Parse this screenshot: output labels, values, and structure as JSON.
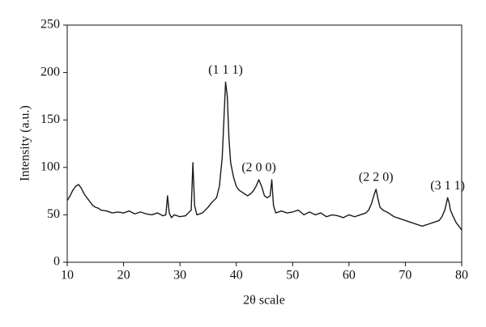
{
  "chart_data": {
    "type": "line",
    "x_label": "2θ scale",
    "y_label": "Intensity (a.u.)",
    "xlim": [
      10,
      80
    ],
    "ylim": [
      0,
      250
    ],
    "xticks": [
      10,
      20,
      30,
      40,
      50,
      60,
      70,
      80
    ],
    "yticks": [
      0,
      50,
      100,
      150,
      200,
      250
    ],
    "color": "#1a1a1a",
    "x": [
      10,
      10.5,
      11,
      11.5,
      12,
      12.5,
      13,
      13.5,
      14,
      14.5,
      15,
      15.5,
      16,
      17,
      18,
      19,
      20,
      21,
      22,
      23,
      24,
      25,
      26,
      27,
      27.5,
      27.8,
      28.1,
      28.5,
      29,
      30,
      31,
      31.5,
      32,
      32.3,
      32.6,
      33,
      34,
      35,
      35.5,
      36,
      36.5,
      37,
      37.5,
      37.8,
      38.1,
      38.4,
      38.7,
      39,
      39.5,
      40,
      40.5,
      41,
      41.5,
      42,
      42.5,
      43,
      43.5,
      44,
      44.5,
      45,
      45.5,
      46,
      46.3,
      46.6,
      47,
      48,
      49,
      50,
      51,
      52,
      53,
      54,
      55,
      56,
      57,
      58,
      59,
      60,
      61,
      62,
      63,
      63.5,
      64,
      64.5,
      64.8,
      65.1,
      65.5,
      66,
      67,
      68,
      69,
      70,
      71,
      72,
      73,
      74,
      75,
      76,
      76.5,
      77,
      77.5,
      77.8,
      78,
      78.5,
      79,
      79.5,
      80
    ],
    "values": [
      65,
      70,
      76,
      80,
      82,
      78,
      72,
      68,
      64,
      60,
      58,
      57,
      55,
      54,
      52,
      53,
      52,
      54,
      51,
      53,
      51,
      50,
      52,
      49,
      50,
      70,
      52,
      47,
      50,
      48,
      49,
      52,
      55,
      105,
      60,
      50,
      52,
      58,
      62,
      65,
      68,
      80,
      110,
      150,
      190,
      175,
      130,
      105,
      90,
      80,
      76,
      74,
      72,
      70,
      72,
      75,
      80,
      87,
      80,
      70,
      68,
      70,
      87,
      60,
      52,
      54,
      52,
      53,
      55,
      50,
      53,
      50,
      52,
      48,
      50,
      49,
      47,
      50,
      48,
      50,
      52,
      55,
      62,
      72,
      77,
      68,
      58,
      55,
      52,
      48,
      46,
      44,
      42,
      40,
      38,
      40,
      42,
      44,
      48,
      55,
      68,
      62,
      55,
      48,
      42,
      38,
      34
    ],
    "annotations": [
      {
        "text": "(1 1 1)",
        "x": 38.1,
        "y": 190
      },
      {
        "text": "(2 0 0)",
        "x": 44,
        "y": 87
      },
      {
        "text": "(2 2 0)",
        "x": 64.8,
        "y": 77
      },
      {
        "text": "(3 1 1)",
        "x": 77.5,
        "y": 68
      }
    ]
  }
}
